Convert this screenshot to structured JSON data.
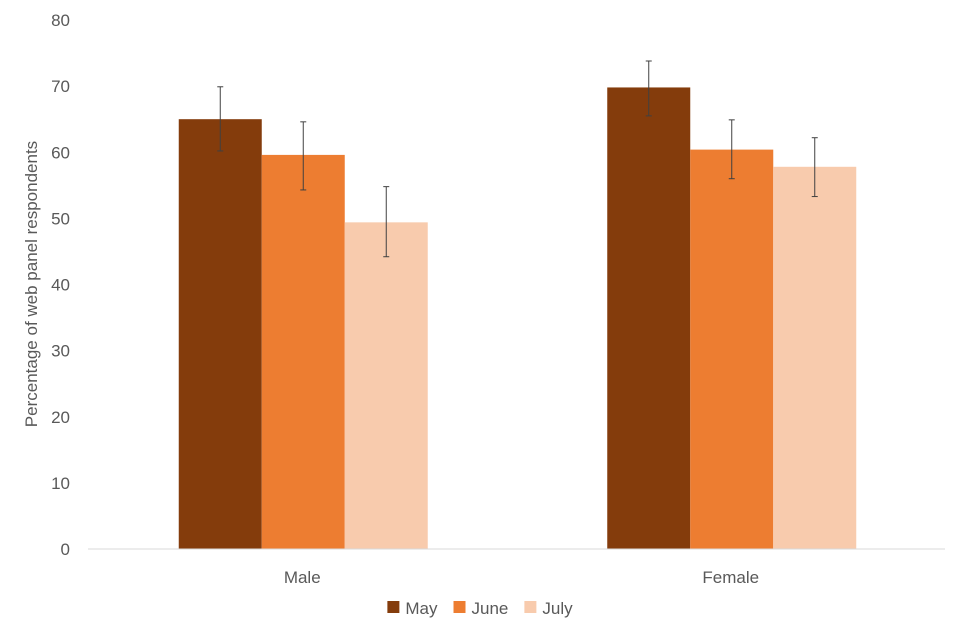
{
  "chart_data": {
    "type": "bar",
    "title": "",
    "xlabel": "",
    "ylabel": "Percentage of web panel respondents",
    "categories": [
      "Male",
      "Female"
    ],
    "ylim": [
      0,
      80
    ],
    "yticks": [
      0,
      10,
      20,
      30,
      40,
      50,
      60,
      70,
      80
    ],
    "grid": false,
    "legend_position": "bottom",
    "series": [
      {
        "name": "May",
        "color": "#843C0C",
        "values": [
          65.0,
          69.8
        ],
        "error_low": [
          60.2,
          65.5
        ],
        "error_high": [
          69.9,
          73.8
        ]
      },
      {
        "name": "June",
        "color": "#ED7D31",
        "values": [
          59.6,
          60.4
        ],
        "error_low": [
          54.3,
          56.0
        ],
        "error_high": [
          64.6,
          64.9
        ]
      },
      {
        "name": "July",
        "color": "#F8CBAD",
        "values": [
          49.4,
          57.8
        ],
        "error_low": [
          44.2,
          53.3
        ],
        "error_high": [
          54.8,
          62.2
        ]
      }
    ]
  }
}
